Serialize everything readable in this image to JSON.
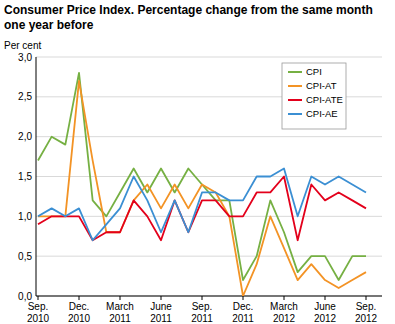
{
  "chart_data": {
    "type": "line",
    "title": "Consumer Price Index. Percentage change from the same month one year before",
    "y_label": "Per cent",
    "categories": [
      "Sep. 2010",
      null,
      null,
      "Dec. 2010",
      null,
      null,
      "March 2011",
      null,
      null,
      "June 2011",
      null,
      null,
      "Sep. 2011",
      null,
      null,
      "Dec. 2011",
      null,
      null,
      "March 2012",
      null,
      null,
      "June 2012",
      null,
      null,
      "Sep. 2012"
    ],
    "series": [
      {
        "name": "CPI",
        "color": "#76b043",
        "values": [
          1.7,
          2.0,
          1.9,
          2.8,
          1.2,
          1.0,
          1.3,
          1.6,
          1.3,
          1.6,
          1.3,
          1.6,
          1.4,
          1.2,
          1.2,
          0.2,
          0.5,
          1.2,
          0.8,
          0.3,
          0.5,
          0.5,
          0.2,
          0.5,
          0.5
        ]
      },
      {
        "name": "CPI-AT",
        "color": "#f39325",
        "values": [
          1.0,
          1.0,
          1.0,
          2.7,
          1.7,
          0.8,
          0.8,
          1.2,
          1.4,
          1.1,
          1.4,
          1.1,
          1.4,
          1.3,
          1.0,
          0.0,
          0.4,
          1.0,
          0.6,
          0.2,
          0.4,
          0.2,
          0.1,
          0.2,
          0.3
        ]
      },
      {
        "name": "CPI-ATE",
        "color": "#e3001b",
        "values": [
          0.9,
          1.0,
          1.0,
          1.0,
          0.7,
          0.8,
          0.8,
          1.2,
          1.0,
          0.7,
          1.2,
          0.8,
          1.2,
          1.2,
          1.0,
          1.0,
          1.3,
          1.3,
          1.5,
          0.7,
          1.4,
          1.2,
          1.3,
          1.2,
          1.1
        ]
      },
      {
        "name": "CPI-AE",
        "color": "#3b8fd3",
        "values": [
          1.0,
          1.1,
          1.0,
          1.1,
          0.7,
          0.9,
          1.1,
          1.5,
          1.2,
          0.8,
          1.2,
          0.8,
          1.3,
          1.3,
          1.2,
          1.2,
          1.5,
          1.5,
          1.6,
          1.0,
          1.5,
          1.4,
          1.5,
          1.4,
          1.3
        ]
      }
    ],
    "ylim": [
      0,
      3
    ],
    "yticks": [
      {
        "value": 0,
        "label": "0,0"
      },
      {
        "value": 0.5,
        "label": "0,5"
      },
      {
        "value": 1,
        "label": "1,0"
      },
      {
        "value": 1.5,
        "label": "1,5"
      },
      {
        "value": 2,
        "label": "2,0"
      },
      {
        "value": 2.5,
        "label": "2,5"
      },
      {
        "value": 3,
        "label": "3,0"
      }
    ],
    "grid": true,
    "legend": "top-right"
  }
}
